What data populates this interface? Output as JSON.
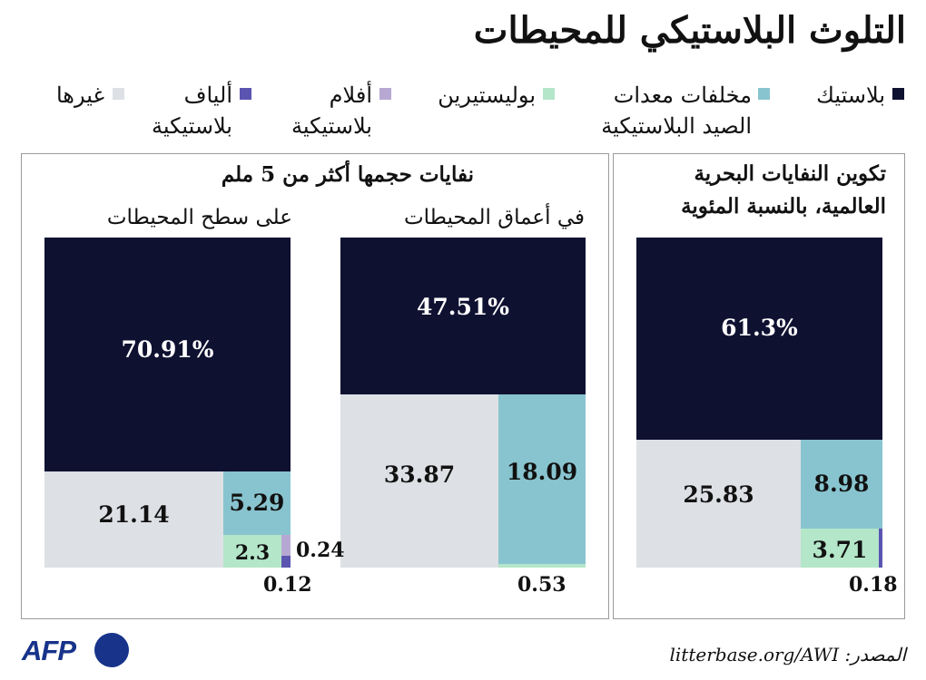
{
  "title": "التلوث البلاستيكي للمحيطات",
  "legend": [
    {
      "label": "بلاستيك",
      "color": "#0f1131"
    },
    {
      "label": "مخلفات معدات الصيد البلاستيكية",
      "color": "#88c4cf"
    },
    {
      "label": "بوليستيرين",
      "color": "#b4e6c9"
    },
    {
      "label": "أفلام بلاستيكية",
      "color": "#b7a8d3"
    },
    {
      "label": "ألياف بلاستيكية",
      "color": "#5b55b1"
    },
    {
      "label": "غيرها",
      "color": "#dde0e4"
    }
  ],
  "panels": {
    "global": {
      "title": "تكوين النفايات البحرية العالمية، بالنسبة المئوية"
    },
    "large": {
      "title": "نفايات حجمها أكثر من 5 ملم",
      "deep_label": "في أعماق المحيطات",
      "surface_label": "على سطح المحيطات"
    }
  },
  "chart_data": [
    {
      "type": "treemap",
      "title": "تكوين النفايات البحرية العالمية، بالنسبة المئوية",
      "categories": [
        "بلاستيك",
        "غيرها",
        "مخلفات معدات الصيد البلاستيكية",
        "بوليستيرين",
        "ألياف بلاستيكية"
      ],
      "values": [
        61.3,
        25.83,
        8.98,
        3.71,
        0.18
      ],
      "labels": [
        "61.3%",
        "25.83",
        "8.98",
        "3.71",
        "0.18"
      ]
    },
    {
      "type": "treemap",
      "title": "في أعماق المحيطات",
      "categories": [
        "بلاستيك",
        "غيرها",
        "مخلفات معدات الصيد البلاستيكية",
        "بوليستيرين"
      ],
      "values": [
        47.51,
        33.87,
        18.09,
        0.53
      ],
      "labels": [
        "47.51%",
        "33.87",
        "18.09",
        "0.53"
      ]
    },
    {
      "type": "treemap",
      "title": "على سطح المحيطات",
      "categories": [
        "بلاستيك",
        "غيرها",
        "مخلفات معدات الصيد البلاستيكية",
        "بوليستيرين",
        "أفلام بلاستيكية",
        "ألياف بلاستيكية"
      ],
      "values": [
        70.91,
        21.14,
        5.29,
        2.3,
        0.24,
        0.12
      ],
      "labels": [
        "70.91%",
        "21.14",
        "5.29",
        "2.3",
        "0.24",
        "0.12"
      ]
    }
  ],
  "source": "المصدر: litterbase.org/AWI",
  "logo": "AFP"
}
